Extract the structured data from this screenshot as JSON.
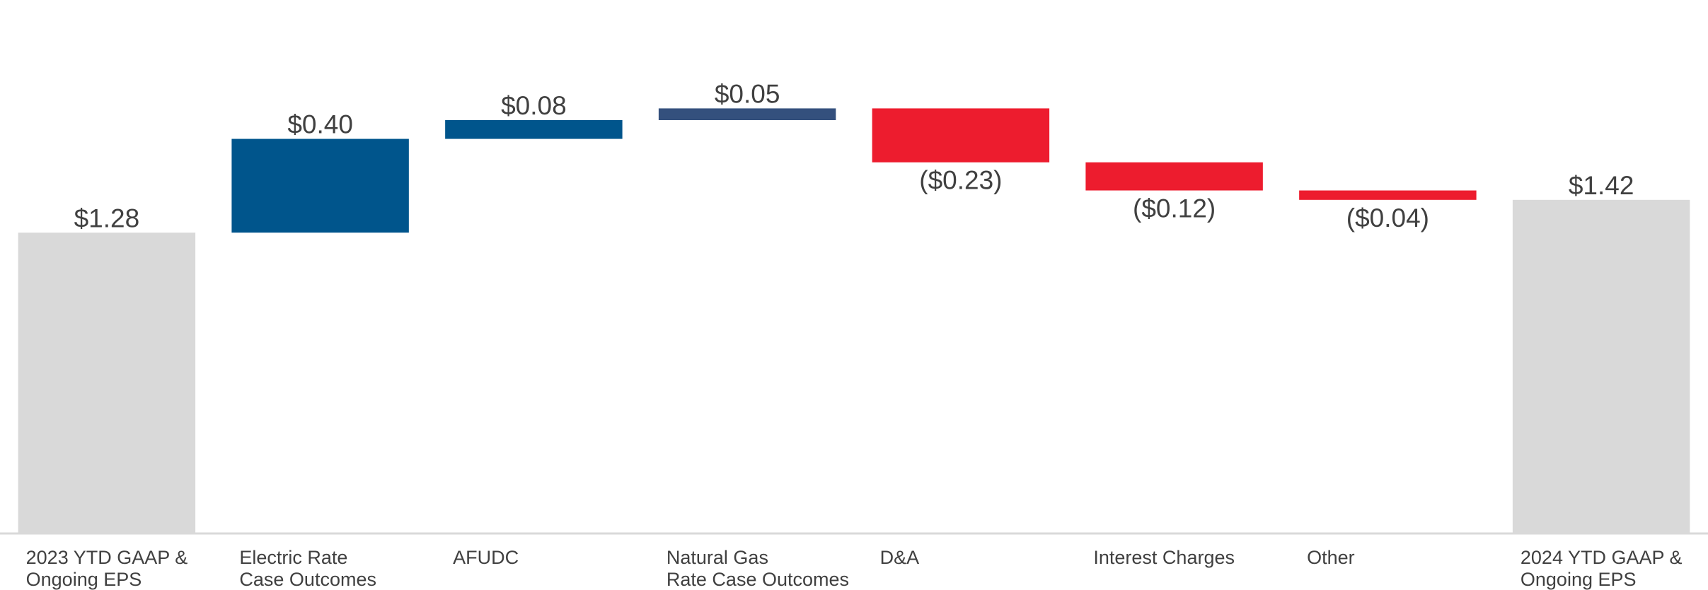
{
  "chart_data": {
    "type": "waterfall",
    "categories": [
      "2023 YTD GAAP &\nOngoing EPS",
      "Electric Rate\nCase Outcomes",
      "AFUDC",
      "Natural Gas\nRate Case Outcomes",
      "D&A",
      "Interest Charges",
      "Other",
      "2024 YTD GAAP &\nOngoing EPS"
    ],
    "values": [
      1.28,
      0.4,
      0.08,
      0.05,
      -0.23,
      -0.12,
      -0.04,
      1.42
    ],
    "value_labels": [
      "$1.28",
      "$0.40",
      "$0.08",
      "$0.05",
      "($0.23)",
      "($0.12)",
      "($0.04)",
      "$1.42"
    ],
    "is_total": [
      true,
      false,
      false,
      false,
      false,
      false,
      false,
      true
    ],
    "colors": [
      "#d9d9d9",
      "#00558c",
      "#00558c",
      "#34507d",
      "#ed1c2e",
      "#ed1c2e",
      "#ed1c2e",
      "#d9d9d9"
    ],
    "ylim": [
      0,
      2.2
    ]
  }
}
